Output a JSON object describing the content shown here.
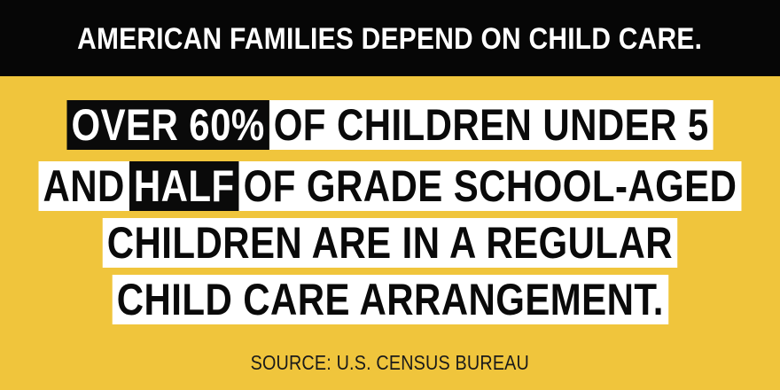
{
  "header": {
    "title": "AMERICAN FAMILIES DEPEND ON CHILD CARE."
  },
  "headline": {
    "line1": {
      "highlight": "OVER 60%",
      "rest": "OF CHILDREN UNDER 5"
    },
    "line2": {
      "before": "AND",
      "highlight": "HALF",
      "rest": "OF GRADE SCHOOL-AGED"
    },
    "line3": {
      "text": "CHILDREN ARE IN A REGULAR"
    },
    "line4": {
      "text": "CHILD CARE ARRANGEMENT."
    }
  },
  "source": {
    "text": "SOURCE: U.S. CENSUS BUREAU"
  },
  "colors": {
    "background": "#f0c53c",
    "header_bg": "#060606",
    "highlight_bg": "#0a0a0a",
    "text_box_bg": "#ffffff"
  }
}
